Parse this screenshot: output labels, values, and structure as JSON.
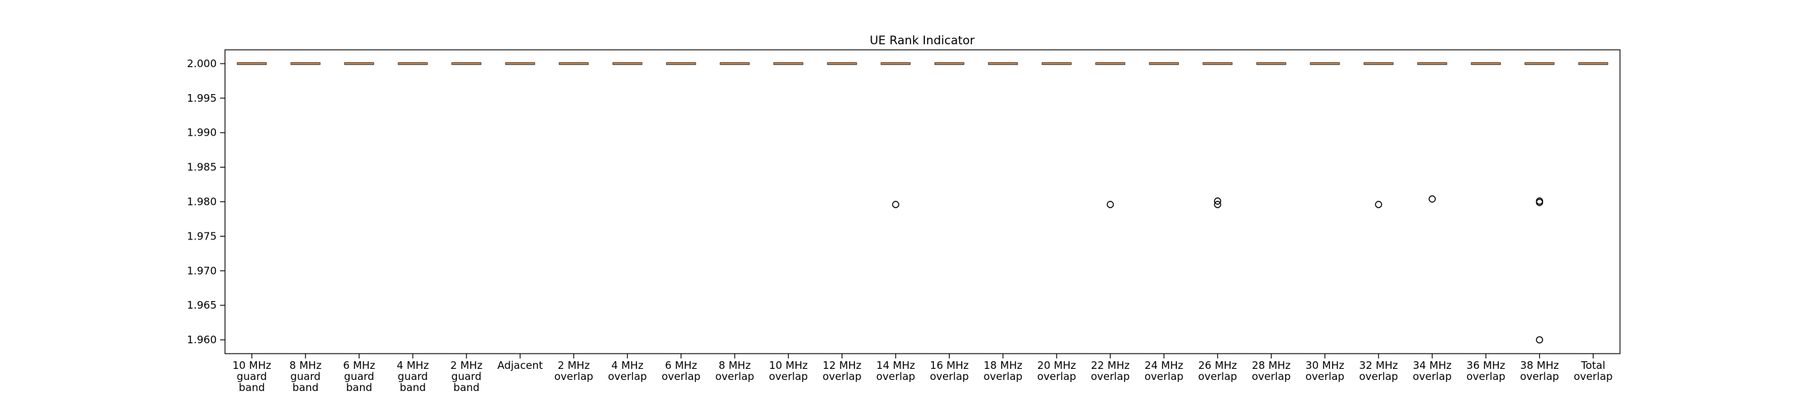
{
  "chart_data": {
    "type": "box",
    "title": "UE Rank Indicator",
    "xlabel": "",
    "ylabel": "",
    "ylim": [
      1.958,
      2.002
    ],
    "yticks": [
      1.96,
      1.965,
      1.97,
      1.975,
      1.98,
      1.985,
      1.99,
      1.995,
      2.0
    ],
    "ytick_labels": [
      "1.960",
      "1.965",
      "1.970",
      "1.975",
      "1.980",
      "1.985",
      "1.990",
      "1.995",
      "2.000"
    ],
    "grid": false,
    "categories": [
      [
        "10 MHz",
        "guard",
        "band"
      ],
      [
        "8 MHz",
        "guard",
        "band"
      ],
      [
        "6 MHz",
        "guard",
        "band"
      ],
      [
        "4 MHz",
        "guard",
        "band"
      ],
      [
        "2 MHz",
        "guard",
        "band"
      ],
      [
        "Adjacent"
      ],
      [
        "2 MHz",
        "overlap"
      ],
      [
        "4 MHz",
        "overlap"
      ],
      [
        "6 MHz",
        "overlap"
      ],
      [
        "8 MHz",
        "overlap"
      ],
      [
        "10 MHz",
        "overlap"
      ],
      [
        "12 MHz",
        "overlap"
      ],
      [
        "14 MHz",
        "overlap"
      ],
      [
        "16 MHz",
        "overlap"
      ],
      [
        "18 MHz",
        "overlap"
      ],
      [
        "20 MHz",
        "overlap"
      ],
      [
        "22 MHz",
        "overlap"
      ],
      [
        "24 MHz",
        "overlap"
      ],
      [
        "26 MHz",
        "overlap"
      ],
      [
        "28 MHz",
        "overlap"
      ],
      [
        "30 MHz",
        "overlap"
      ],
      [
        "32 MHz",
        "overlap"
      ],
      [
        "34 MHz",
        "overlap"
      ],
      [
        "36 MHz",
        "overlap"
      ],
      [
        "38 MHz",
        "overlap"
      ],
      [
        "Total",
        "overlap"
      ]
    ],
    "medians": [
      2.0,
      2.0,
      2.0,
      2.0,
      2.0,
      2.0,
      2.0,
      2.0,
      2.0,
      2.0,
      2.0,
      2.0,
      2.0,
      2.0,
      2.0,
      2.0,
      2.0,
      2.0,
      2.0,
      2.0,
      2.0,
      2.0,
      2.0,
      2.0,
      2.0,
      2.0
    ],
    "outliers": [
      [],
      [],
      [],
      [],
      [],
      [],
      [],
      [],
      [],
      [],
      [],
      [],
      [
        1.9796
      ],
      [],
      [],
      [],
      [
        1.9796
      ],
      [],
      [
        1.9796,
        1.9801
      ],
      [],
      [],
      [
        1.9796
      ],
      [
        1.9804
      ],
      [],
      [
        1.9799,
        1.9801,
        1.96
      ],
      []
    ],
    "colors": {
      "median": "#e8883c",
      "box": "#000000",
      "outlier": "#000000",
      "frame": "#000000"
    }
  }
}
